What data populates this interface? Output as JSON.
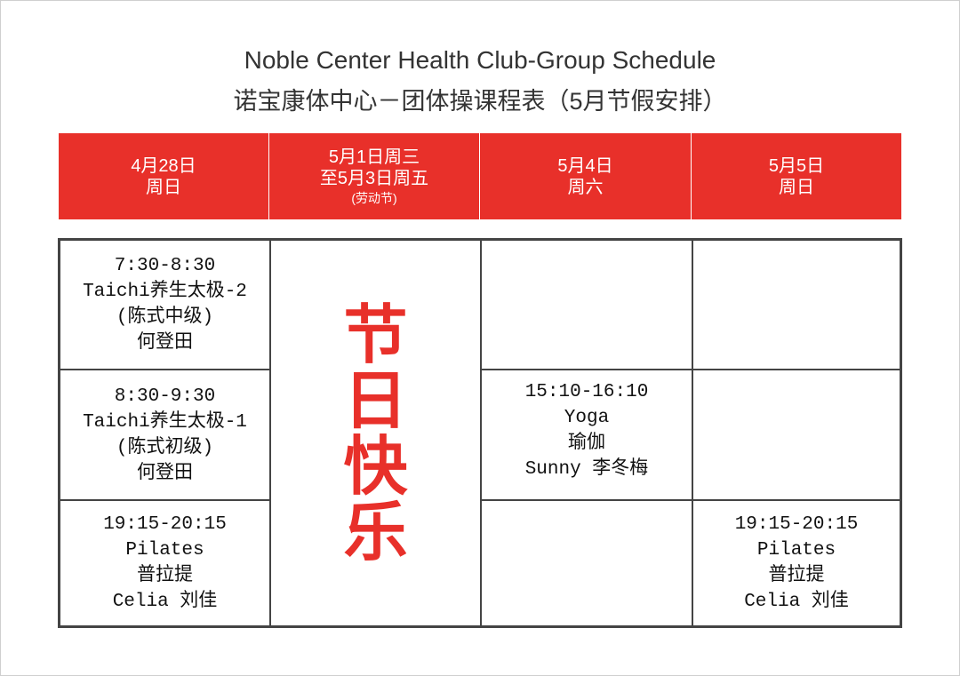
{
  "title": {
    "en": "Noble Center Health Club-Group  Schedule",
    "zh": "诺宝康体中心－团体操课程表（5月节假安排）"
  },
  "accent_color": "#e8302a",
  "columns": [
    {
      "line1": "4月28日",
      "line2": "周日",
      "sub": ""
    },
    {
      "line1": "5月1日周三",
      "line2": "至5月3日周五",
      "sub": "(劳动节)"
    },
    {
      "line1": "5月4日",
      "line2": "周六",
      "sub": ""
    },
    {
      "line1": "5月5日",
      "line2": "周日",
      "sub": ""
    }
  ],
  "holiday_text": [
    "节",
    "日",
    "快",
    "乐"
  ],
  "classes": {
    "c0r0": [
      "7:30-8:30",
      "Taichi养生太极-2",
      "(陈式中级)",
      "何登田"
    ],
    "c0r1": [
      "8:30-9:30",
      "Taichi养生太极-1",
      "(陈式初级)",
      "何登田"
    ],
    "c0r2": [
      "19:15-20:15",
      "Pilates",
      "普拉提",
      "Celia 刘佳"
    ],
    "c2r1": [
      "15:10-16:10",
      "Yoga",
      "瑜伽",
      "Sunny 李冬梅"
    ],
    "c3r2": [
      "19:15-20:15",
      "Pilates",
      "普拉提",
      "Celia 刘佳"
    ]
  }
}
